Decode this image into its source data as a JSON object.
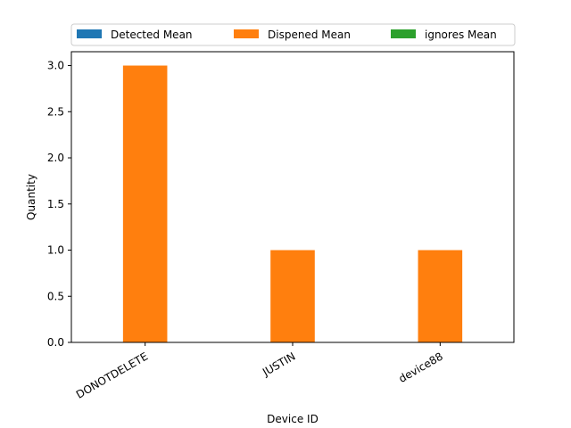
{
  "chart_data": {
    "type": "bar",
    "categories": [
      "DONOTDELETE",
      "JUSTIN",
      "device88"
    ],
    "series": [
      {
        "name": "Detected Mean",
        "values": [
          0,
          0,
          0
        ],
        "color": "#1f77b4"
      },
      {
        "name": "Dispened Mean",
        "values": [
          3,
          1,
          1
        ],
        "color": "#ff7f0e"
      },
      {
        "name": "ignores Mean",
        "values": [
          0,
          0,
          0
        ],
        "color": "#2ca02c"
      }
    ],
    "xlabel": "Device ID",
    "ylabel": "Quantity",
    "ylim": [
      0,
      3.15
    ],
    "yticks": [
      "0.0",
      "0.5",
      "1.0",
      "1.5",
      "2.0",
      "2.5",
      "3.0"
    ],
    "grid": false,
    "legend_position": "top"
  }
}
